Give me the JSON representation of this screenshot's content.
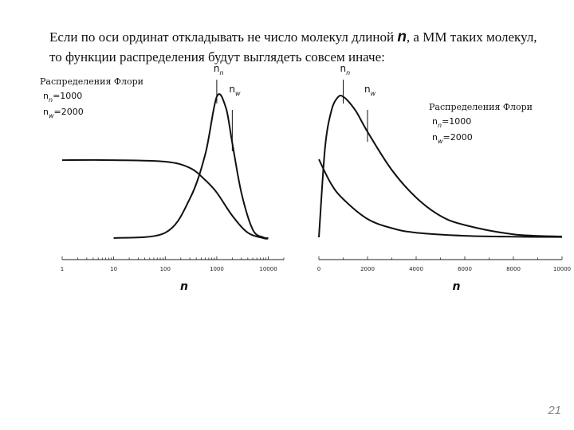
{
  "slide": {
    "text_before": "Если по оси ординат откладывать не число молекул длиной ",
    "text_symbol": "n",
    "text_after": ", а ММ таких молекул, то функции распределения будут выглядеть совсем иначе:",
    "page_number": "21"
  },
  "chart_data": [
    {
      "type": "line",
      "xscale": "log",
      "xlim": [
        1,
        20000
      ],
      "xticks": [
        "1",
        "10",
        "100",
        "1000",
        "10000"
      ],
      "xlabel": "n",
      "legend": {
        "title": "Распределения Флори",
        "items": [
          {
            "sym": "n",
            "sub": "n",
            "val": "=1000"
          },
          {
            "sym": "n",
            "sub": "w",
            "val": "=2000"
          }
        ]
      },
      "markers": [
        {
          "sym": "n",
          "sub": "n",
          "x": 1000
        },
        {
          "sym": "n",
          "sub": "w",
          "x": 2000
        }
      ],
      "series": [
        {
          "shape": "number",
          "x": [
            1,
            10,
            100,
            300,
            600,
            1000,
            2000,
            4000,
            8000,
            10000
          ],
          "y": [
            0.51,
            0.51,
            0.5,
            0.46,
            0.38,
            0.3,
            0.15,
            0.04,
            0.005,
            0.002
          ]
        },
        {
          "shape": "weight",
          "x": [
            10,
            100,
            300,
            600,
            1000,
            1500,
            2000,
            3000,
            5000,
            8000,
            10000
          ],
          "y": [
            0.005,
            0.04,
            0.26,
            0.55,
            0.92,
            0.85,
            0.62,
            0.3,
            0.06,
            0.01,
            0.005
          ]
        }
      ]
    },
    {
      "type": "line",
      "xscale": "linear",
      "xlim": [
        0,
        10000
      ],
      "xticks": [
        "0",
        "2000",
        "4000",
        "6000",
        "8000",
        "10000"
      ],
      "xlabel": "n",
      "legend": {
        "title": "Распределения Флори",
        "items": [
          {
            "sym": "n",
            "sub": "n",
            "val": "=1000"
          },
          {
            "sym": "n",
            "sub": "w",
            "val": "=2000"
          }
        ]
      },
      "markers": [
        {
          "sym": "n",
          "sub": "n",
          "x": 1000
        },
        {
          "sym": "n",
          "sub": "w",
          "x": 2000
        }
      ],
      "series": [
        {
          "shape": "number",
          "x": [
            0,
            500,
            1000,
            2000,
            3000,
            4000,
            6000,
            8000,
            10000
          ],
          "y": [
            0.51,
            0.35,
            0.25,
            0.12,
            0.06,
            0.03,
            0.01,
            0.004,
            0.002
          ]
        },
        {
          "shape": "weight",
          "x": [
            0,
            250,
            500,
            750,
            1000,
            1500,
            2000,
            3000,
            4000,
            5000,
            6000,
            8000,
            10000
          ],
          "y": [
            0.0,
            0.58,
            0.82,
            0.91,
            0.92,
            0.83,
            0.69,
            0.44,
            0.26,
            0.14,
            0.08,
            0.02,
            0.005
          ]
        }
      ]
    }
  ]
}
